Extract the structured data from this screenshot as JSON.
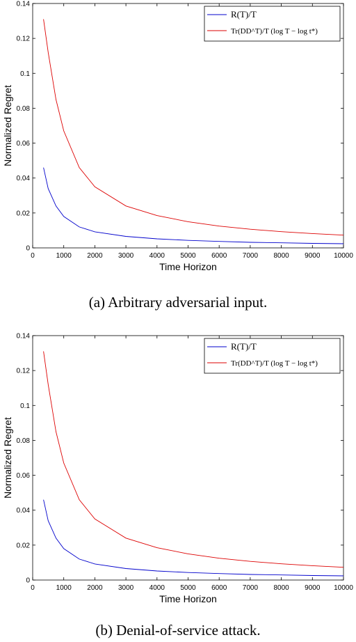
{
  "chart_data": [
    {
      "type": "line",
      "caption": "(a) Arbitrary adversarial input.",
      "xlabel": "Time Horizon",
      "ylabel": "Normalized Regret",
      "xlim": [
        0,
        10000
      ],
      "ylim": [
        0,
        0.14
      ],
      "xticks": [
        "0",
        "1000",
        "2000",
        "3000",
        "4000",
        "5000",
        "6000",
        "7000",
        "8000",
        "9000",
        "10000"
      ],
      "yticks": [
        "0",
        "0.02",
        "0.04",
        "0.06",
        "0.08",
        "0.1",
        "0.12",
        "0.14"
      ],
      "legend_position": "top-right",
      "grid": false,
      "x": [
        350,
        500,
        750,
        1000,
        1500,
        2000,
        3000,
        4000,
        5000,
        6000,
        7000,
        8000,
        9000,
        10000
      ],
      "series": [
        {
          "name": "R(T)/T",
          "color": "#0000cc",
          "values": [
            0.046,
            0.034,
            0.024,
            0.018,
            0.012,
            0.0092,
            0.0066,
            0.0052,
            0.0043,
            0.0037,
            0.0032,
            0.0029,
            0.0026,
            0.0024
          ]
        },
        {
          "name": "Tr(DD^T)/T (log T − log t*)",
          "color": "#dd0000",
          "values": [
            0.131,
            0.112,
            0.085,
            0.067,
            0.046,
            0.035,
            0.024,
            0.0185,
            0.015,
            0.0125,
            0.0107,
            0.0093,
            0.0082,
            0.0073
          ]
        }
      ]
    },
    {
      "type": "line",
      "caption": "(b) Denial-of-service attack.",
      "xlabel": "Time Horizon",
      "ylabel": "Normalized Regret",
      "xlim": [
        0,
        10000
      ],
      "ylim": [
        0,
        0.14
      ],
      "xticks": [
        "0",
        "1000",
        "2000",
        "3000",
        "4000",
        "5000",
        "6000",
        "7000",
        "8000",
        "9000",
        "10000"
      ],
      "yticks": [
        "0",
        "0.02",
        "0.04",
        "0.06",
        "0.08",
        "0.1",
        "0.12",
        "0.14"
      ],
      "legend_position": "top-right",
      "grid": false,
      "x": [
        350,
        500,
        750,
        1000,
        1500,
        2000,
        3000,
        4000,
        5000,
        6000,
        7000,
        8000,
        9000,
        10000
      ],
      "series": [
        {
          "name": "R(T)/T",
          "color": "#0000cc",
          "values": [
            0.046,
            0.034,
            0.024,
            0.018,
            0.012,
            0.0092,
            0.0066,
            0.0052,
            0.0043,
            0.0037,
            0.0032,
            0.0029,
            0.0026,
            0.0024
          ]
        },
        {
          "name": "Tr(DD^T)/T (log T − log t*)",
          "color": "#dd0000",
          "values": [
            0.131,
            0.112,
            0.085,
            0.067,
            0.046,
            0.035,
            0.024,
            0.0185,
            0.015,
            0.0125,
            0.0107,
            0.0093,
            0.0082,
            0.0073
          ]
        }
      ]
    }
  ]
}
